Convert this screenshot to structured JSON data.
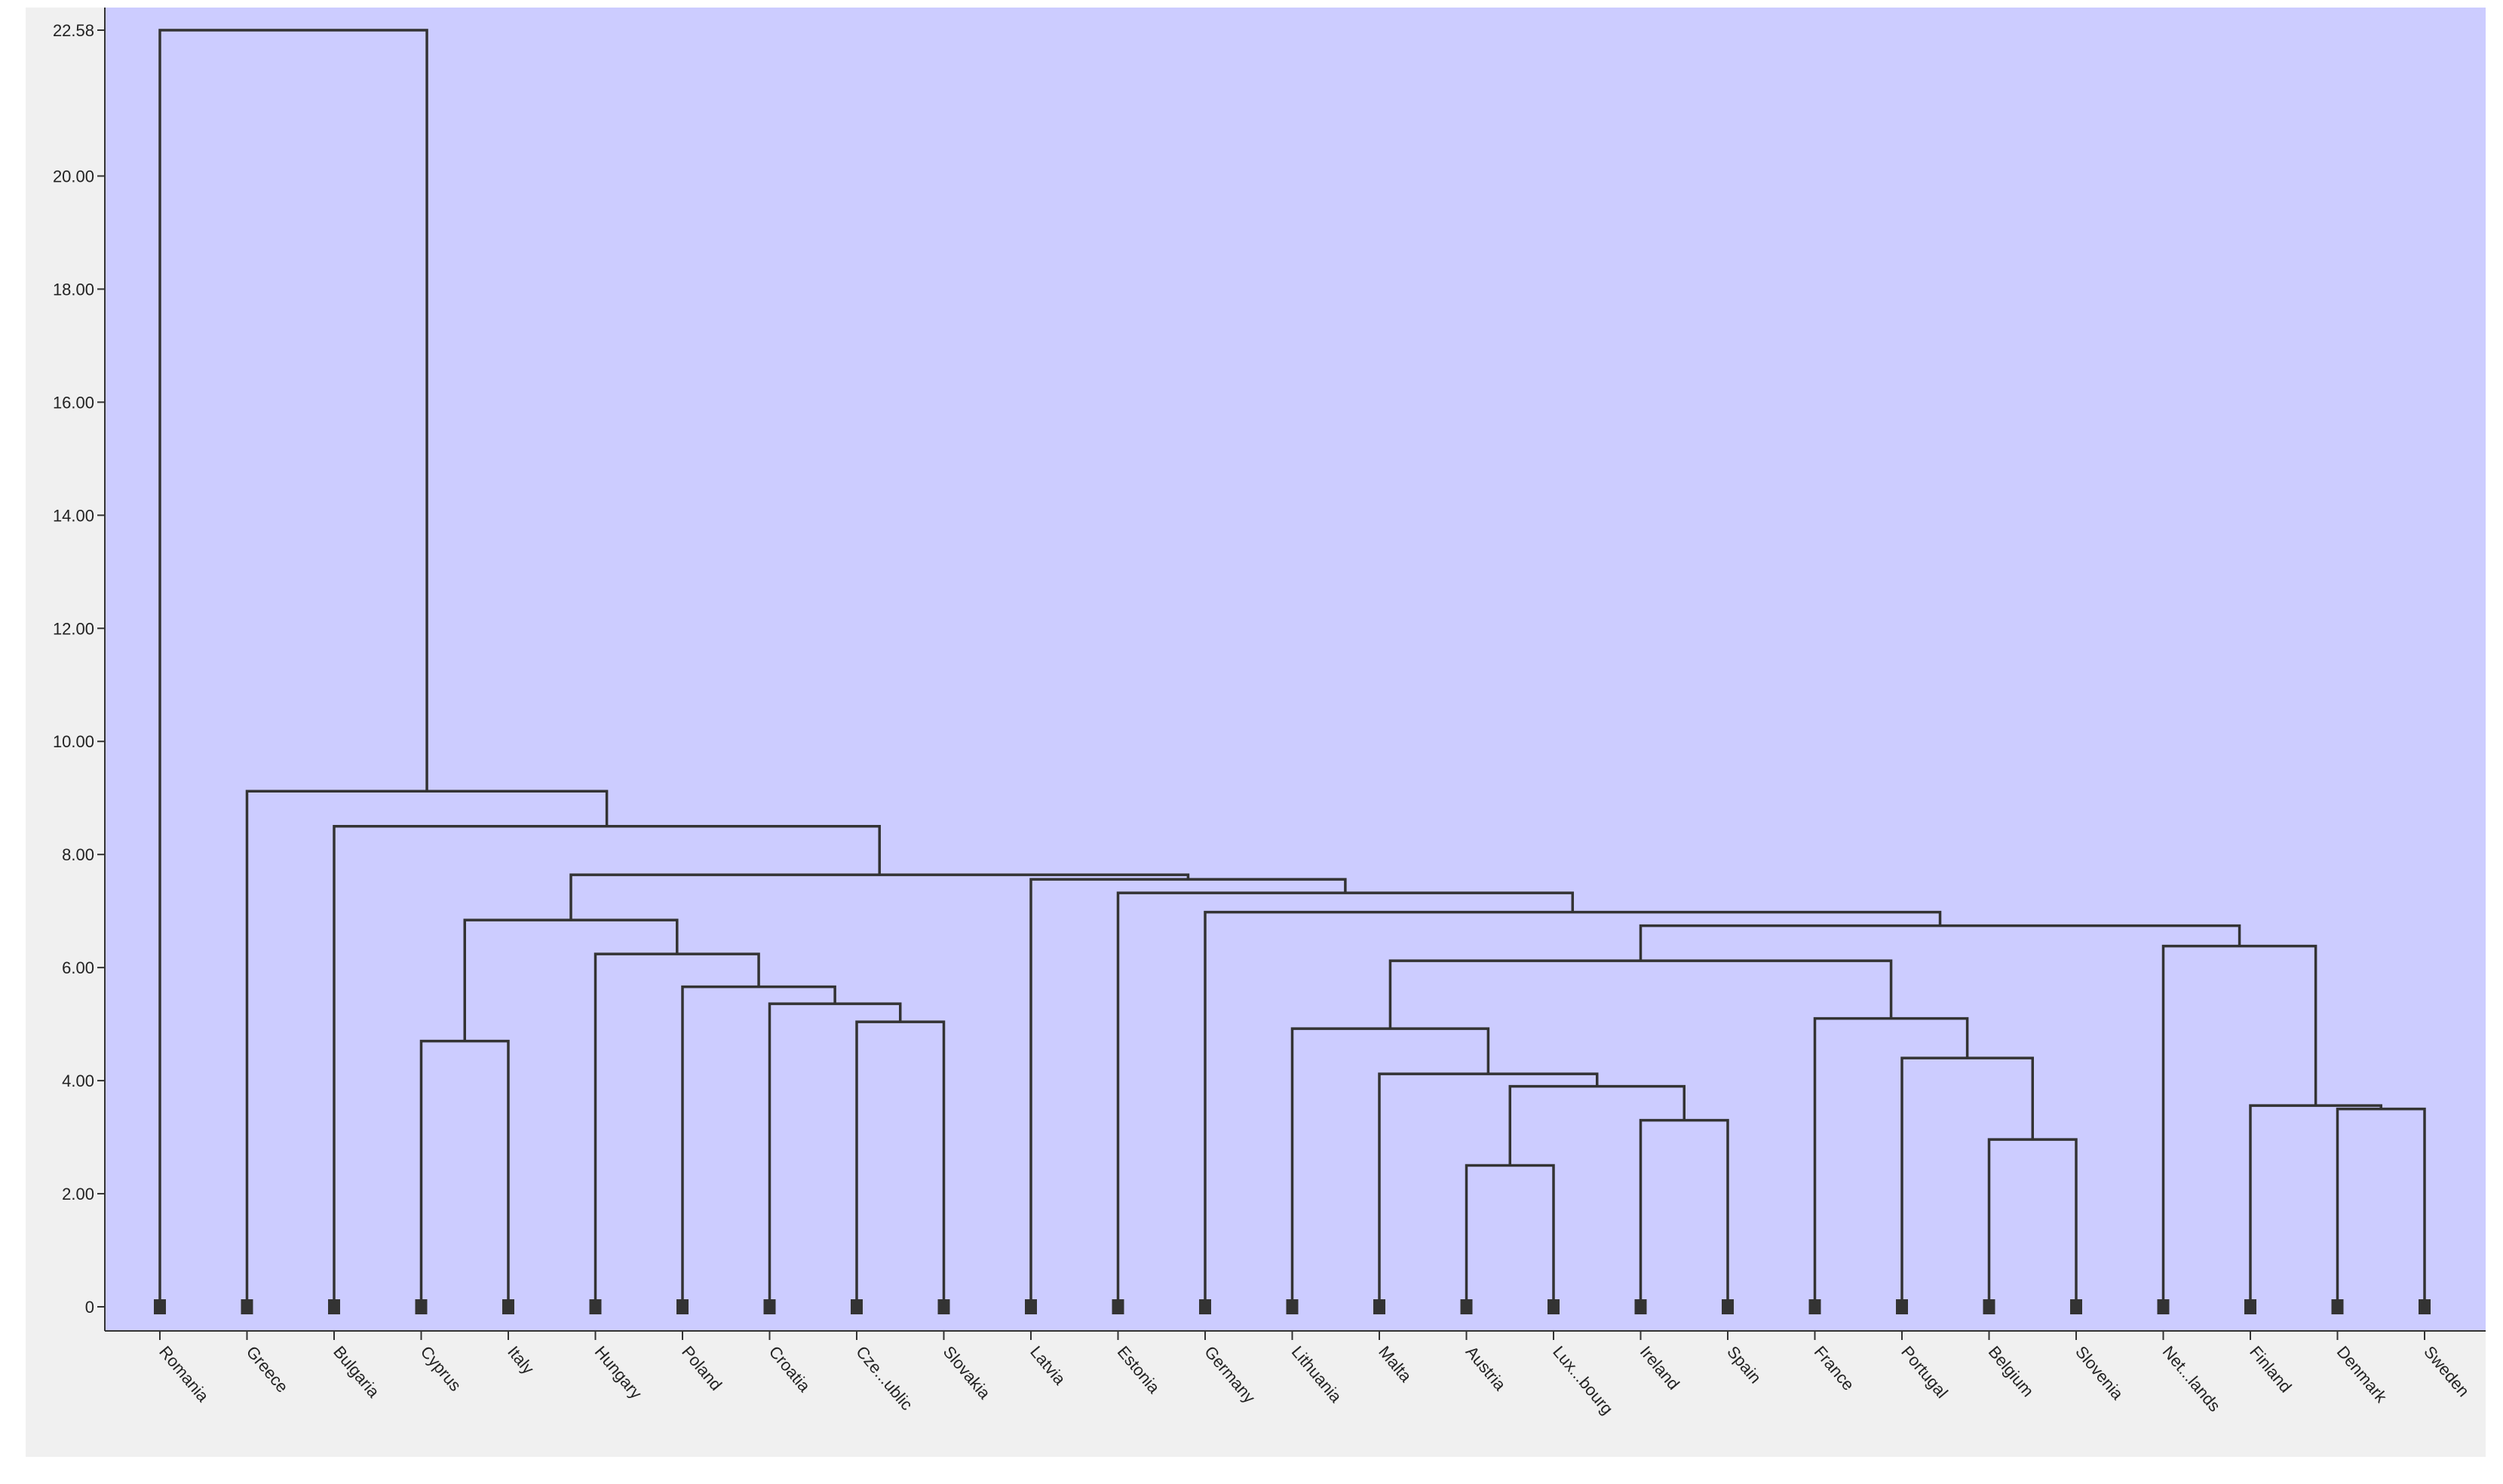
{
  "chart_data": {
    "type": "dendrogram",
    "orientation": "vertical",
    "title": "",
    "xlabel": "",
    "ylabel": "",
    "ylim": [
      0,
      22.58
    ],
    "y_ticks": [
      {
        "value": 0,
        "label": "0"
      },
      {
        "value": 2,
        "label": "2.00"
      },
      {
        "value": 4,
        "label": "4.00"
      },
      {
        "value": 6,
        "label": "6.00"
      },
      {
        "value": 8,
        "label": "8.00"
      },
      {
        "value": 10,
        "label": "10.00"
      },
      {
        "value": 12,
        "label": "12.00"
      },
      {
        "value": 14,
        "label": "14.00"
      },
      {
        "value": 16,
        "label": "16.00"
      },
      {
        "value": 18,
        "label": "18.00"
      },
      {
        "value": 20,
        "label": "20.00"
      },
      {
        "value": 22.58,
        "label": "22.58"
      }
    ],
    "leaves": [
      "Romania",
      "Greece",
      "Bulgaria",
      "Cyprus",
      "Italy",
      "Hungary",
      "Poland",
      "Croatia",
      "Cze...ublic",
      "Slovakia",
      "Latvia",
      "Estonia",
      "Germany",
      "Lithuania",
      "Malta",
      "Austria",
      "Lux...bourg",
      "Ireland",
      "Spain",
      "France",
      "Portugal",
      "Belgium",
      "Slovenia",
      "Net...lands",
      "Finland",
      "Denmark",
      "Sweden"
    ],
    "merges": [
      {
        "id": "m1",
        "left": "Austria",
        "right": "Lux...bourg",
        "height": 2.5
      },
      {
        "id": "m2",
        "left": "Belgium",
        "right": "Slovenia",
        "height": 2.96
      },
      {
        "id": "m3",
        "left": "Ireland",
        "right": "Spain",
        "height": 3.3
      },
      {
        "id": "m4",
        "left": "Denmark",
        "right": "Sweden",
        "height": 3.5
      },
      {
        "id": "m5",
        "left": "Finland",
        "right": "m4",
        "height": 3.56
      },
      {
        "id": "m6",
        "left": "m1",
        "right": "m3",
        "height": 3.9
      },
      {
        "id": "m7",
        "left": "Malta",
        "right": "m6",
        "height": 4.12
      },
      {
        "id": "m8",
        "left": "Portugal",
        "right": "m2",
        "height": 4.4
      },
      {
        "id": "m9",
        "left": "Cyprus",
        "right": "Italy",
        "height": 4.7
      },
      {
        "id": "m10",
        "left": "Lithuania",
        "right": "m7",
        "height": 4.92
      },
      {
        "id": "m11",
        "left": "Cze...ublic",
        "right": "Slovakia",
        "height": 5.04
      },
      {
        "id": "m12",
        "left": "France",
        "right": "m8",
        "height": 5.1
      },
      {
        "id": "m13",
        "left": "Croatia",
        "right": "m11",
        "height": 5.36
      },
      {
        "id": "m14",
        "left": "Poland",
        "right": "m13",
        "height": 5.66
      },
      {
        "id": "m15",
        "left": "m10",
        "right": "m12",
        "height": 6.12
      },
      {
        "id": "m16",
        "left": "Hungary",
        "right": "m14",
        "height": 6.24
      },
      {
        "id": "m17",
        "left": "Net...lands",
        "right": "m5",
        "height": 6.38
      },
      {
        "id": "m18",
        "left": "m15",
        "right": "m17",
        "height": 6.74
      },
      {
        "id": "m19",
        "left": "m9",
        "right": "m16",
        "height": 6.84
      },
      {
        "id": "m20",
        "left": "Germany",
        "right": "m18",
        "height": 6.98
      },
      {
        "id": "m21",
        "left": "Estonia",
        "right": "m20",
        "height": 7.32
      },
      {
        "id": "m22",
        "left": "Latvia",
        "right": "m21",
        "height": 7.56
      },
      {
        "id": "m23",
        "left": "m19",
        "right": "m22",
        "height": 7.64
      },
      {
        "id": "m24",
        "left": "Bulgaria",
        "right": "m23",
        "height": 8.5
      },
      {
        "id": "m25",
        "left": "Greece",
        "right": "m24",
        "height": 9.12
      },
      {
        "id": "m26",
        "left": "Romania",
        "right": "m25",
        "height": 22.58
      }
    ],
    "grid": false,
    "legend": false,
    "colors": {
      "plot_background": "#ccccff",
      "outer_background": "#f0f0f0",
      "line": "#333333",
      "leaf_marker": "#333333",
      "text": "#222222"
    }
  }
}
